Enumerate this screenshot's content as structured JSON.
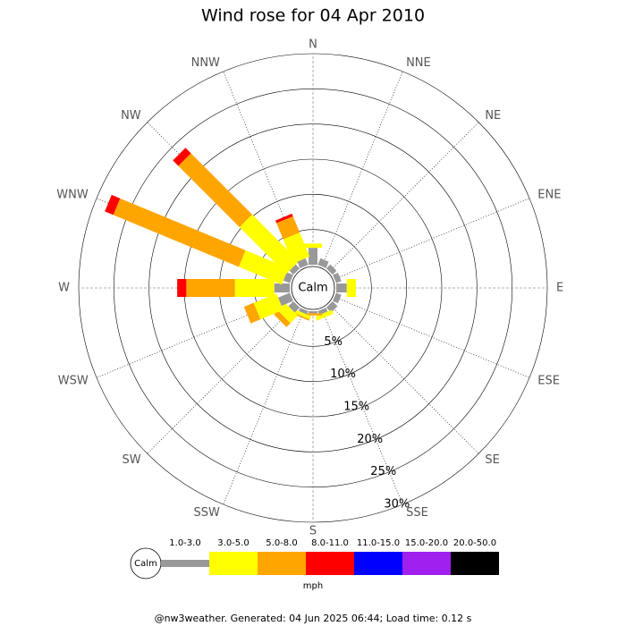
{
  "chart_data": {
    "type": "windrose",
    "title": "Wind rose for 04 Apr 2010",
    "categories": [
      "N",
      "NNE",
      "NE",
      "ENE",
      "E",
      "ESE",
      "SE",
      "SSE",
      "S",
      "SSW",
      "SW",
      "WSW",
      "W",
      "WNW",
      "NW",
      "NNW"
    ],
    "series": [
      {
        "name": "1.0-3.0",
        "color": "#999999",
        "values": [
          2.4,
          1.0,
          0.8,
          0.8,
          1.5,
          0.8,
          1.0,
          0.6,
          0.3,
          0.5,
          1.0,
          1.8,
          2.2,
          1.0,
          0.8,
          1.0
        ]
      },
      {
        "name": "3.0-5.0",
        "color": "#ffff00",
        "values": [
          0.6,
          0,
          0,
          0,
          1.3,
          0,
          0,
          0.6,
          0,
          0.5,
          1.5,
          3.5,
          5.6,
          6.6,
          9.4,
          3.7
        ]
      },
      {
        "name": "5.0-8.0",
        "color": "#ffa500",
        "values": [
          0,
          0,
          0,
          0,
          0,
          0,
          0,
          0,
          0.3,
          0.2,
          0.8,
          1.5,
          6.9,
          19.3,
          12.3,
          2.5
        ]
      },
      {
        "name": "8.0-11.0",
        "color": "#ff0000",
        "values": [
          0,
          0,
          0,
          0,
          0,
          0,
          0,
          0,
          0,
          0,
          0,
          0,
          1.3,
          1.3,
          1.1,
          0.4
        ]
      },
      {
        "name": "11.0-15.0",
        "color": "#0000ff",
        "values": [
          0,
          0,
          0,
          0,
          0,
          0,
          0,
          0,
          0,
          0,
          0,
          0,
          0,
          0,
          0,
          0
        ]
      },
      {
        "name": "15.0-20.0",
        "color": "#a020f0",
        "values": [
          0,
          0,
          0,
          0,
          0,
          0,
          0,
          0,
          0,
          0,
          0,
          0,
          0,
          0,
          0,
          0
        ]
      },
      {
        "name": "20.0-50.0",
        "color": "#000000",
        "values": [
          0,
          0,
          0,
          0,
          0,
          0,
          0,
          0,
          0,
          0,
          0,
          0,
          0,
          0,
          0,
          0
        ]
      }
    ],
    "rlim": [
      0,
      30
    ],
    "rticks": [
      {
        "value": 5,
        "label": "5%"
      },
      {
        "value": 10,
        "label": "10%"
      },
      {
        "value": 15,
        "label": "15%"
      },
      {
        "value": 20,
        "label": "20%"
      },
      {
        "value": 25,
        "label": "25%"
      },
      {
        "value": 30,
        "label": "30%"
      }
    ],
    "calm_label": "Calm",
    "legend_unit": "mph",
    "footer": "@nw3weather. Generated: 04 Jun 2025 06:44; Load time: 0.12 s"
  }
}
